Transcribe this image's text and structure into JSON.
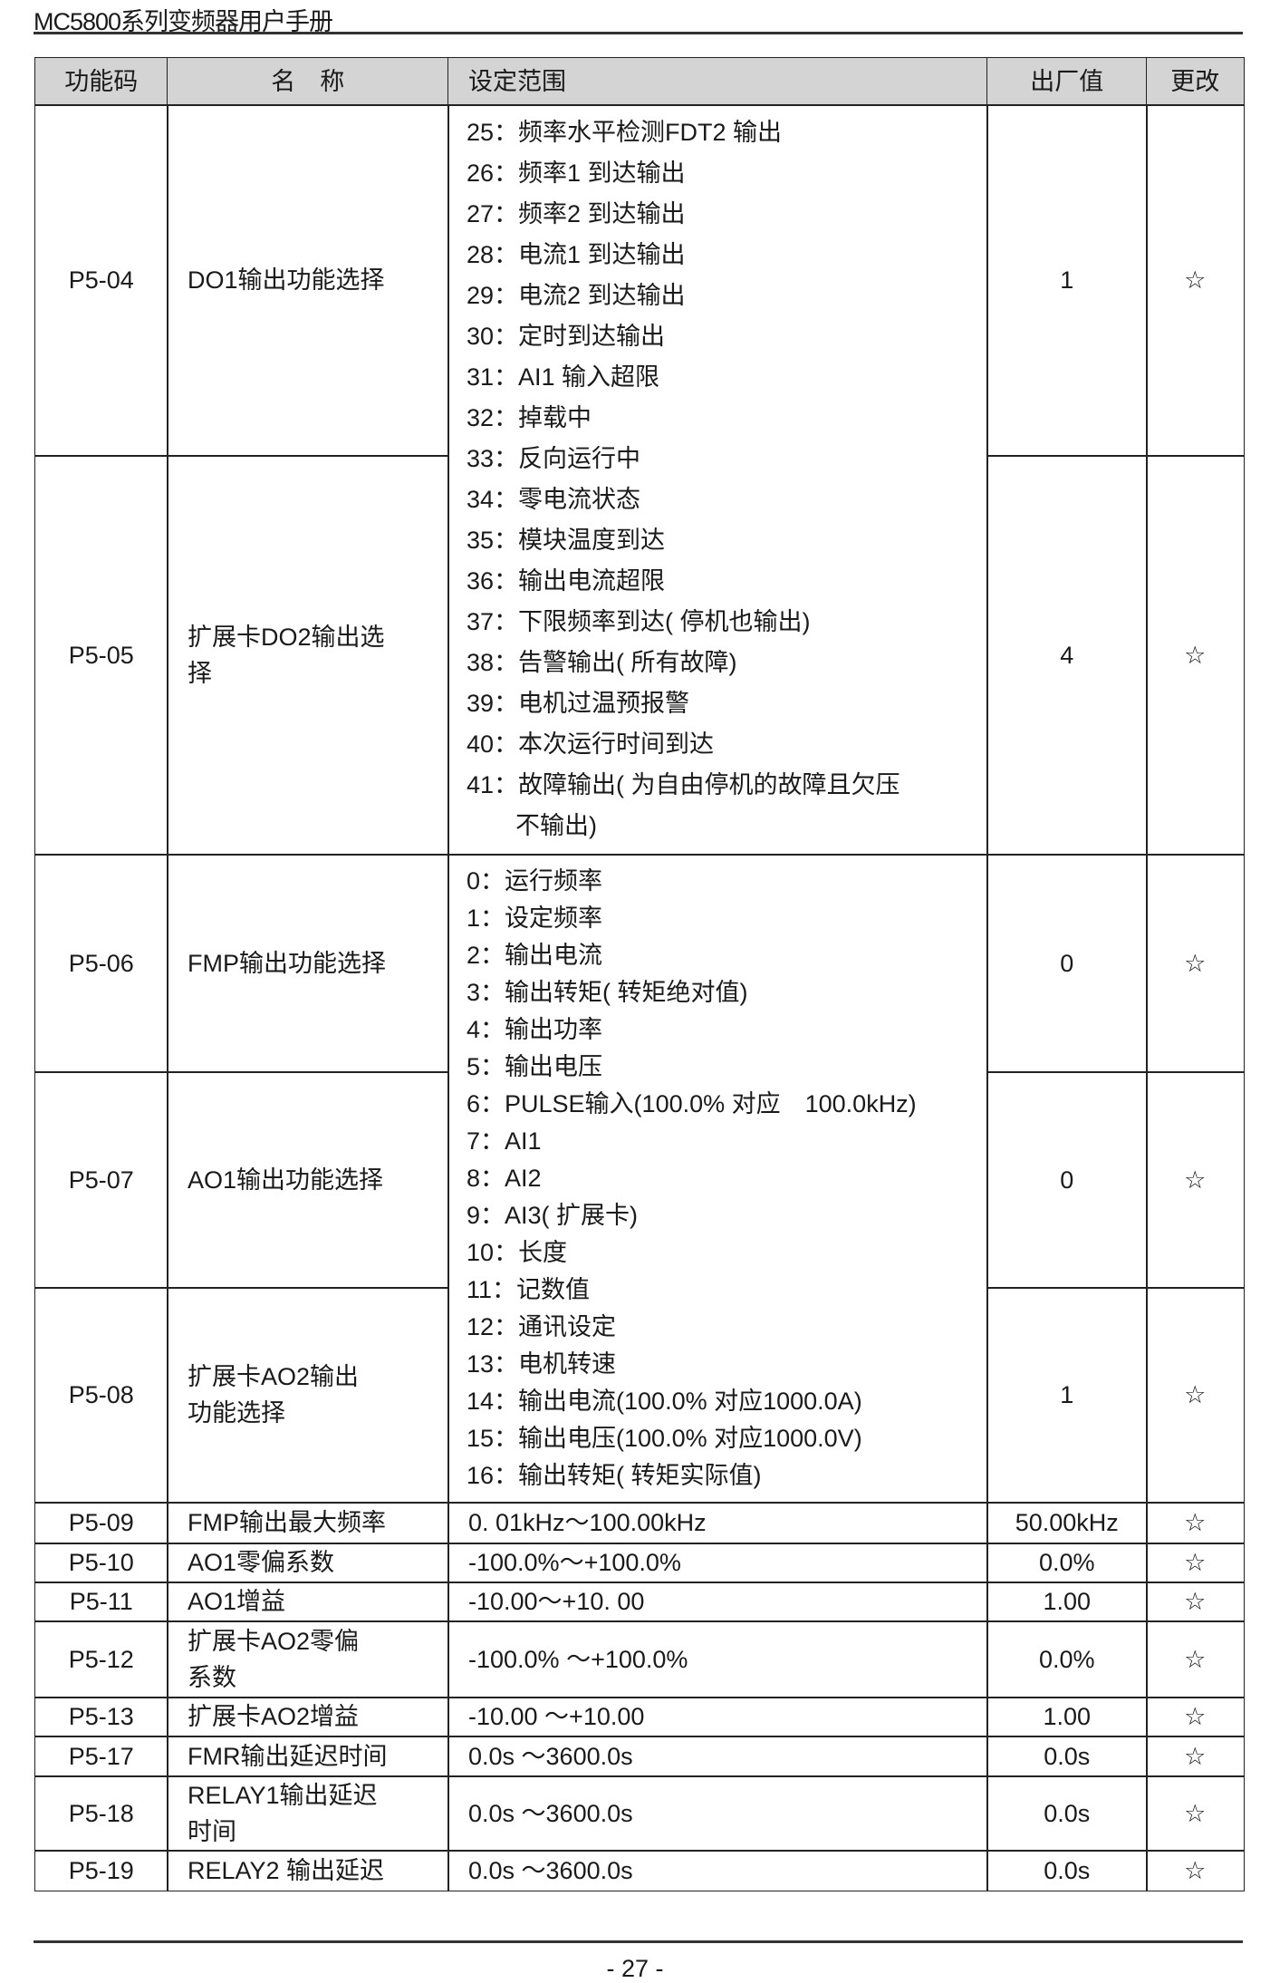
{
  "header": {
    "title": "MC5800系列变频器用户手册"
  },
  "footer": {
    "page_number": "- 27 -"
  },
  "table": {
    "columns": [
      "功能码",
      "名　称",
      "设定范围",
      "出厂值",
      "更改"
    ],
    "rows": [
      {
        "code": "P5-04",
        "name_lines": [
          "DO1输出功能选择"
        ],
        "default": "1",
        "change": "☆"
      },
      {
        "code": "P5-05",
        "name_lines": [
          "扩展卡DO2输出选",
          "择"
        ],
        "default": "4",
        "change": "☆"
      },
      {
        "code": "P5-06",
        "name_lines": [
          "FMP输出功能选择"
        ],
        "default": "0",
        "change": "☆"
      },
      {
        "code": "P5-07",
        "name_lines": [
          "AO1输出功能选择"
        ],
        "default": "0",
        "change": "☆"
      },
      {
        "code": "P5-08",
        "name_lines": [
          "扩展卡AO2输出",
          "功能选择"
        ],
        "default": "1",
        "change": "☆"
      },
      {
        "code": "P5-09",
        "name_lines": [
          "FMP输出最大频率"
        ],
        "range": "0. 01kHz～100.00kHz",
        "default": "50.00kHz",
        "change": "☆"
      },
      {
        "code": "P5-10",
        "name_lines": [
          "AO1零偏系数"
        ],
        "range": "-100.0%～+100.0%",
        "default": "0.0%",
        "change": "☆"
      },
      {
        "code": "P5-11",
        "name_lines": [
          "AO1增益"
        ],
        "range": "-10.00～+10. 00",
        "default": "1.00",
        "change": "☆"
      },
      {
        "code": "P5-12",
        "name_lines": [
          "扩展卡AO2零偏",
          "系数"
        ],
        "range": "-100.0% ～+100.0%",
        "default": "0.0%",
        "change": "☆"
      },
      {
        "code": "P5-13",
        "name_lines": [
          "扩展卡AO2增益"
        ],
        "range": "-10.00 ～+10.00",
        "default": "1.00",
        "change": "☆"
      },
      {
        "code": "P5-17",
        "name_lines": [
          "FMR输出延迟时间"
        ],
        "range": "0.0s ～3600.0s",
        "default": "0.0s",
        "change": "☆"
      },
      {
        "code": "P5-18",
        "name_lines": [
          "RELAY1输出延迟",
          "时间"
        ],
        "range": "0.0s ～3600.0s",
        "default": "0.0s",
        "change": "☆"
      },
      {
        "code": "P5-19",
        "name_lines": [
          "RELAY2 输出延迟"
        ],
        "range": "0.0s ～3600.0s",
        "default": "0.0s",
        "change": "☆"
      }
    ],
    "range_groups": [
      {
        "rows": [
          "P5-04",
          "P5-05"
        ],
        "lines": [
          "25：频率水平检测FDT2 输出",
          "26：频率1 到达输出",
          "27：频率2 到达输出",
          "28：电流1 到达输出",
          "29：电流2 到达输出",
          "30：定时到达输出",
          "31：AI1 输入超限",
          "32：掉载中",
          "33：反向运行中",
          "34：零电流状态",
          "35：模块温度到达",
          "36：输出电流超限",
          "37：下限频率到达( 停机也输出)",
          "38：告警输出( 所有故障)",
          "39：电机过温预报警",
          "40：本次运行时间到达",
          "41：故障输出( 为自由停机的故障且欠压",
          "　　不输出)"
        ]
      },
      {
        "rows": [
          "P5-06",
          "P5-07",
          "P5-08"
        ],
        "lines": [
          "0：运行频率",
          "1：设定频率",
          "2：输出电流",
          "3：输出转矩( 转矩绝对值)",
          "4：输出功率",
          "5：输出电压",
          "6：PULSE输入(100.0% 对应　100.0kHz)",
          "7：AI1",
          "8：AI2",
          "9：AI3( 扩展卡)",
          "10：长度",
          "11：记数值",
          "12：通讯设定",
          "13：电机转速",
          "14：输出电流(100.0% 对应1000.0A)",
          "15：输出电压(100.0% 对应1000.0V)",
          "16：输出转矩( 转矩实际值)"
        ]
      }
    ]
  }
}
